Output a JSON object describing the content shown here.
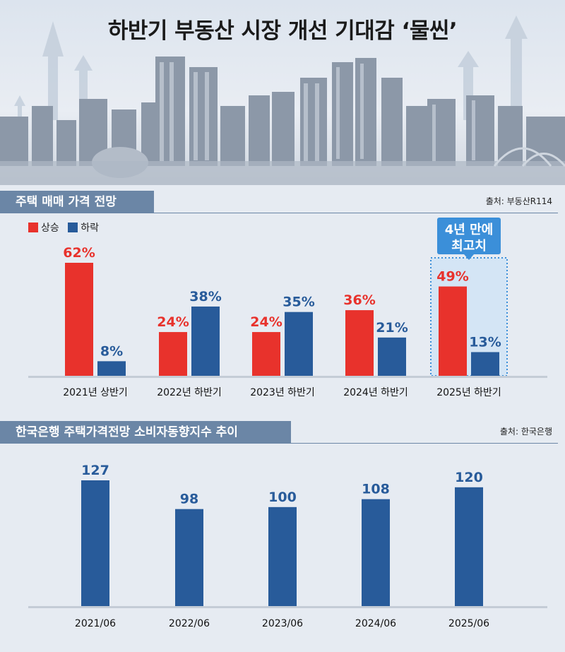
{
  "title": "하반기 부동산 시장 개선 기대감 ‘물씬’",
  "colors": {
    "up": "#e8322c",
    "down": "#285b9a",
    "header": "#6b86a6",
    "highlight": "#3b8fd9"
  },
  "section1": {
    "header": "주택 매매 가격 전망",
    "source": "출처: 부동산R114",
    "legend": [
      "상승",
      "하락"
    ],
    "callout": [
      "4년 만에",
      "최고치"
    ]
  },
  "section2": {
    "header": "한국은행 주택가격전망 소비자동향지수 추이",
    "source": "출처: 한국은행"
  },
  "chart_data": [
    {
      "type": "bar",
      "title": "주택 매매 가격 전망",
      "categories": [
        "2021년 상반기",
        "2022년 하반기",
        "2023년 하반기",
        "2024년 하반기",
        "2025년 하반기"
      ],
      "series": [
        {
          "name": "상승",
          "values": [
            62,
            24,
            24,
            36,
            49
          ],
          "labels": [
            "62%",
            "24%",
            "24%",
            "36%",
            "49%"
          ]
        },
        {
          "name": "하락",
          "values": [
            8,
            38,
            35,
            21,
            13
          ],
          "labels": [
            "8%",
            "38%",
            "35%",
            "21%",
            "13%"
          ]
        }
      ],
      "ylim": [
        0,
        62
      ]
    },
    {
      "type": "bar",
      "title": "한국은행 주택가격전망 소비자동향지수 추이",
      "categories": [
        "2021/06",
        "2022/06",
        "2023/06",
        "2024/06",
        "2025/06"
      ],
      "values": [
        127,
        98,
        100,
        108,
        120
      ],
      "labels": [
        "127",
        "98",
        "100",
        "108",
        "120"
      ],
      "ylim": [
        0,
        127
      ]
    }
  ]
}
